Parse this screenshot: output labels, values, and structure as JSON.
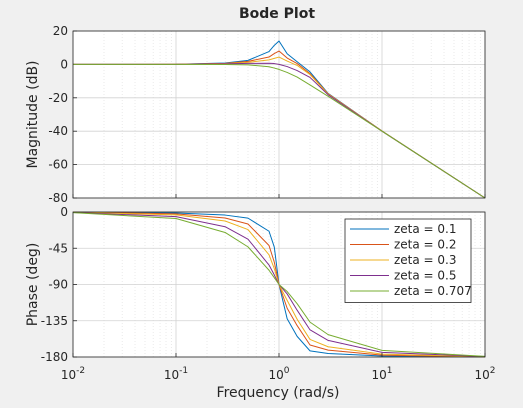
{
  "chart_data": {
    "type": "line",
    "title": "Bode Plot",
    "xlabel": "Frequency  (rad/s)",
    "x_scale": "log",
    "xlim": [
      0.01,
      100
    ],
    "x_ticks": [
      {
        "value": 0.01,
        "base": "10",
        "exp": "-2"
      },
      {
        "value": 0.1,
        "base": "10",
        "exp": "-1"
      },
      {
        "value": 1,
        "base": "10",
        "exp": "0"
      },
      {
        "value": 10,
        "base": "10",
        "exp": "1"
      },
      {
        "value": 100,
        "base": "10",
        "exp": "2"
      }
    ],
    "grid": true,
    "legend_position": "inside-top-right of lower panel",
    "series": [
      {
        "name": "zeta = 0.1",
        "zeta": 0.1,
        "color": "#0072bd"
      },
      {
        "name": "zeta = 0.2",
        "zeta": 0.2,
        "color": "#d95319"
      },
      {
        "name": "zeta = 0.3",
        "zeta": 0.3,
        "color": "#edb120"
      },
      {
        "name": "zeta = 0.5",
        "zeta": 0.5,
        "color": "#7e2f8e"
      },
      {
        "name": "zeta = 0.707",
        "zeta": 0.707,
        "color": "#77ac30"
      }
    ],
    "panels": [
      {
        "id": "magnitude",
        "ylabel": "Magnitude (dB)",
        "ylim": [
          -80,
          20
        ],
        "y_ticks": [
          20,
          0,
          -20,
          -40,
          -60,
          -80
        ],
        "series_values": [
          {
            "name": "zeta = 0.1",
            "x": [
              0.01,
              0.1,
              0.3,
              0.5,
              0.8,
              0.9,
              1.0,
              1.2,
              1.5,
              2,
              3,
              10,
              100
            ],
            "y": [
              0.0,
              0.09,
              0.82,
              2.4,
              7.7,
              11.4,
              14.0,
              6.4,
              1.6,
              -4.5,
              -17.4,
              -39.9,
              -80.0
            ]
          },
          {
            "name": "zeta = 0.2",
            "x": [
              0.01,
              0.1,
              0.3,
              0.5,
              0.8,
              0.9,
              1.0,
              1.2,
              1.5,
              2,
              3,
              10,
              100
            ],
            "y": [
              0.0,
              0.07,
              0.62,
              1.8,
              4.4,
              6.5,
              8.0,
              3.8,
              0.5,
              -5.5,
              -17.6,
              -39.9,
              -80.0
            ]
          },
          {
            "name": "zeta = 0.3",
            "x": [
              0.01,
              0.1,
              0.3,
              0.5,
              0.8,
              0.9,
              1.0,
              1.2,
              1.5,
              2,
              3,
              10,
              100
            ],
            "y": [
              0.0,
              0.05,
              0.46,
              1.2,
              2.7,
              3.6,
              4.4,
              2.0,
              -0.6,
              -6.1,
              -17.8,
              -39.9,
              -80.0
            ]
          },
          {
            "name": "zeta = 0.5",
            "x": [
              0.01,
              0.1,
              0.3,
              0.5,
              0.8,
              0.9,
              1.0,
              1.2,
              1.5,
              2,
              3,
              10,
              100
            ],
            "y": [
              0.0,
              0.04,
              0.28,
              0.6,
              0.7,
              0.5,
              0.0,
              -1.3,
              -3.7,
              -7.8,
              -18.2,
              -40.0,
              -80.0
            ]
          },
          {
            "name": "zeta = 0.707",
            "x": [
              0.01,
              0.1,
              0.3,
              0.5,
              0.8,
              0.9,
              1.0,
              1.2,
              1.5,
              2,
              3,
              10,
              100
            ],
            "y": [
              0.0,
              0.0,
              -0.03,
              -0.26,
              -1.4,
              -2.2,
              -3.0,
              -4.8,
              -7.6,
              -12.3,
              -19.1,
              -40.0,
              -80.0
            ]
          }
        ]
      },
      {
        "id": "phase",
        "ylabel": "Phase (deg)",
        "ylim": [
          -180,
          0
        ],
        "y_ticks": [
          0,
          -45,
          -90,
          -135,
          -180
        ],
        "series_values": [
          {
            "name": "zeta = 0.1",
            "x": [
              0.01,
              0.1,
              0.3,
              0.5,
              0.8,
              0.9,
              1.0,
              1.2,
              1.5,
              2,
              3,
              10,
              100
            ],
            "y": [
              -0.1,
              -1.2,
              -3.8,
              -7.6,
              -23.9,
              -43.5,
              -90.0,
              -132.5,
              -154.4,
              -172.4,
              -175.7,
              -178.8,
              -179.9
            ]
          },
          {
            "name": "zeta = 0.2",
            "x": [
              0.01,
              0.1,
              0.3,
              0.5,
              0.8,
              0.9,
              1.0,
              1.2,
              1.5,
              2,
              3,
              10,
              100
            ],
            "y": [
              -0.2,
              -2.3,
              -7.5,
              -14.9,
              -41.6,
              -62.2,
              -90.0,
              -119.5,
              -141.0,
              -165.1,
              -171.5,
              -177.7,
              -179.8
            ]
          },
          {
            "name": "zeta = 0.3",
            "x": [
              0.01,
              0.1,
              0.3,
              0.5,
              0.8,
              0.9,
              1.0,
              1.2,
              1.5,
              2,
              3,
              10,
              100
            ],
            "y": [
              -0.3,
              -3.5,
              -11.2,
              -21.8,
              -53.1,
              -70.3,
              -90.0,
              -109.7,
              -133.1,
              -158.2,
              -167.3,
              -176.5,
              -179.7
            ]
          },
          {
            "name": "zeta = 0.5",
            "x": [
              0.01,
              0.1,
              0.3,
              0.5,
              0.8,
              0.9,
              1.0,
              1.2,
              1.5,
              2,
              3,
              10,
              100
            ],
            "y": [
              -0.6,
              -5.8,
              -18.3,
              -33.7,
              -65.8,
              -78.1,
              -90.0,
              -101.7,
              -121.9,
              -146.3,
              -159.4,
              -174.2,
              -179.4
            ]
          },
          {
            "name": "zeta = 0.707",
            "x": [
              0.01,
              0.1,
              0.3,
              0.5,
              0.8,
              0.9,
              1.0,
              1.2,
              1.5,
              2,
              3,
              10,
              100
            ],
            "y": [
              -0.8,
              -8.1,
              -25.4,
              -43.3,
              -72.3,
              -81.5,
              -90.0,
              -98.7,
              -113.8,
              -136.7,
              -152.2,
              -171.8,
              -179.2
            ]
          }
        ]
      }
    ]
  }
}
